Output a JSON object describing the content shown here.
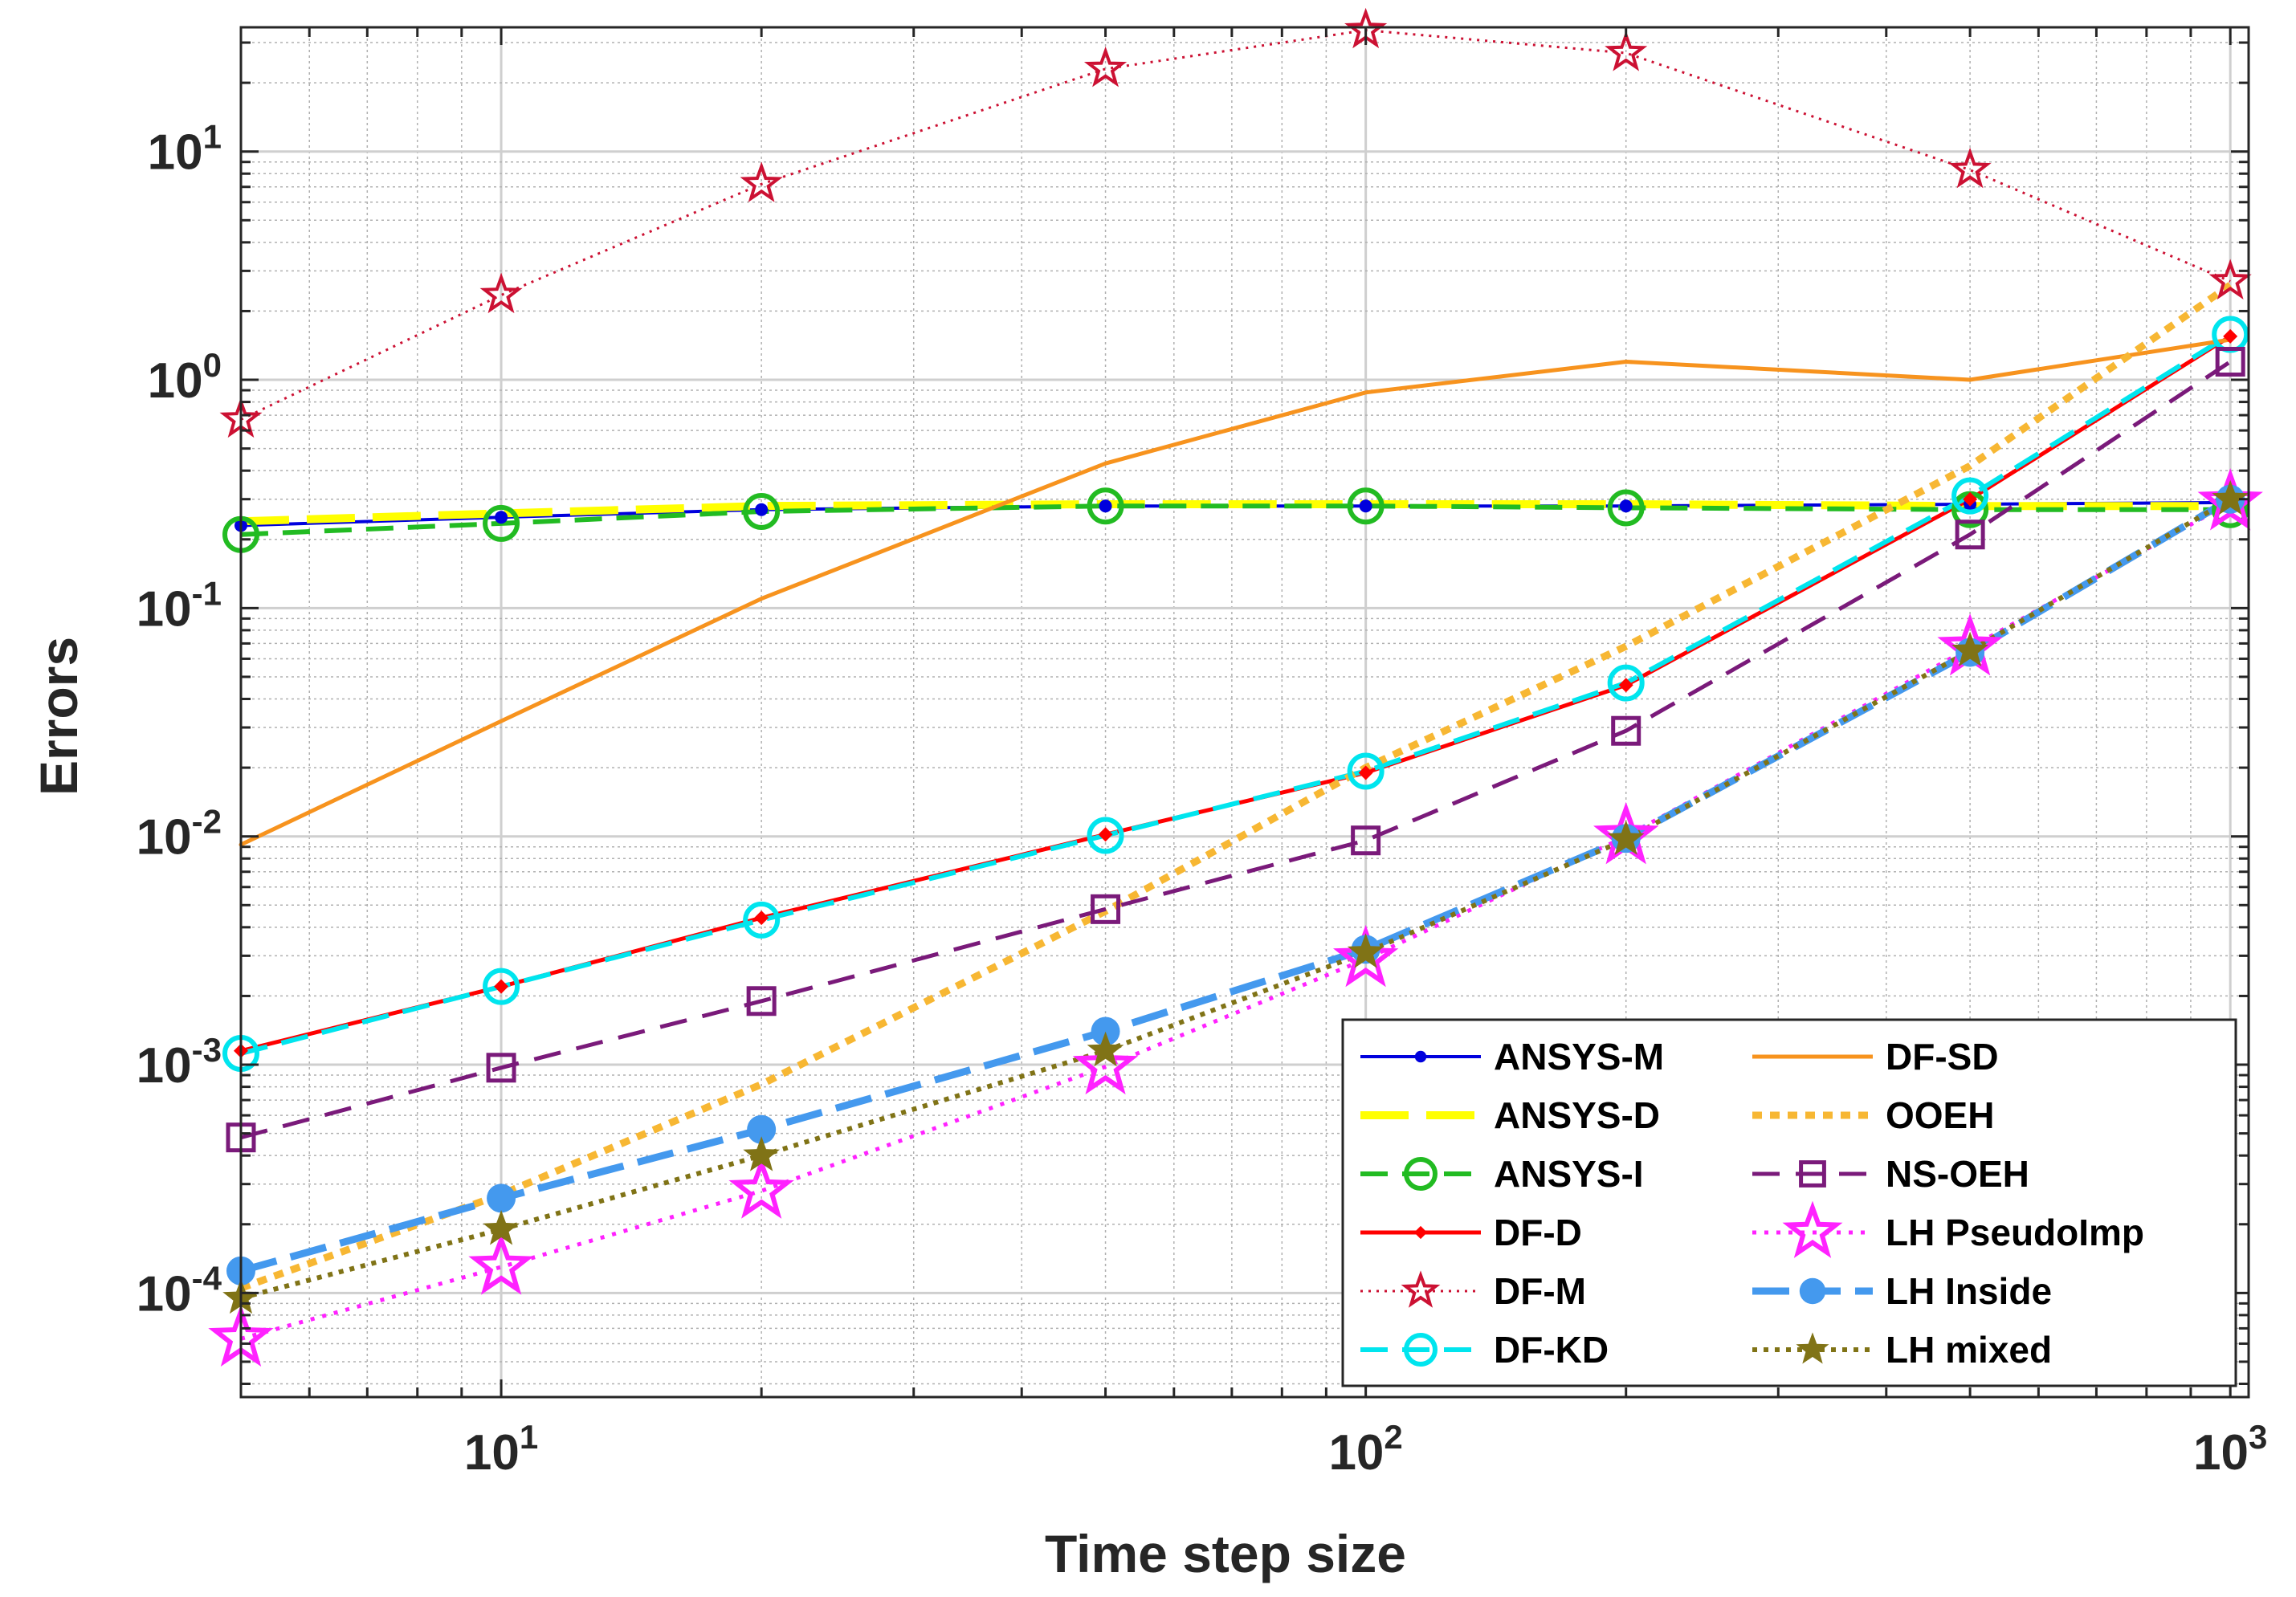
{
  "chart_data": {
    "type": "line",
    "title": "",
    "xlabel": "Time step size",
    "ylabel": "Errors",
    "xscale": "log",
    "yscale": "log",
    "xlim": [
      5,
      1050
    ],
    "ylim": [
      3.5e-05,
      35
    ],
    "grid": true,
    "minor_grid": true,
    "legend_location": "bottom-right",
    "legend_columns": 2,
    "x_ticks": [
      {
        "value": 10,
        "base": "10",
        "exp": "1"
      },
      {
        "value": 100,
        "base": "10",
        "exp": "2"
      },
      {
        "value": 1000,
        "base": "10",
        "exp": "3"
      }
    ],
    "y_ticks": [
      {
        "value": 0.0001,
        "base": "10",
        "exp": "-4"
      },
      {
        "value": 0.001,
        "base": "10",
        "exp": "-3"
      },
      {
        "value": 0.01,
        "base": "10",
        "exp": "-2"
      },
      {
        "value": 0.1,
        "base": "10",
        "exp": "-1"
      },
      {
        "value": 1,
        "base": "10",
        "exp": "0"
      },
      {
        "value": 10,
        "base": "10",
        "exp": "1"
      }
    ],
    "x": [
      5,
      10,
      20,
      50,
      100,
      200,
      500,
      1000
    ],
    "series": [
      {
        "name": "ANSYS-M",
        "color": "#0000dd",
        "dash": "",
        "width": 4,
        "marker": "dot",
        "values": [
          0.23,
          0.25,
          0.27,
          0.28,
          0.28,
          0.28,
          0.285,
          0.29
        ]
      },
      {
        "name": "ANSYS-D",
        "color": "#ffff00",
        "dash": "60,22",
        "width": 10,
        "marker": "none",
        "values": [
          0.24,
          0.26,
          0.28,
          0.285,
          0.285,
          0.285,
          0.28,
          0.28
        ]
      },
      {
        "name": "ANSYS-I",
        "color": "#22bb22",
        "dash": "34,18",
        "width": 6,
        "marker": "circle",
        "values": [
          0.21,
          0.235,
          0.265,
          0.28,
          0.28,
          0.275,
          0.27,
          0.27
        ]
      },
      {
        "name": "DF-D",
        "color": "#ff0000",
        "dash": "",
        "width": 5,
        "marker": "diamond",
        "values": [
          0.00115,
          0.0022,
          0.0044,
          0.0102,
          0.019,
          0.046,
          0.3,
          1.55
        ]
      },
      {
        "name": "DF-M",
        "color": "#cc1133",
        "dash": "3,7",
        "width": 3,
        "marker": "star-outline",
        "values": [
          0.67,
          2.35,
          7.2,
          23,
          34,
          27,
          8.3,
          2.7
        ]
      },
      {
        "name": "DF-KD",
        "color": "#00e5ee",
        "dash": "34,18",
        "width": 6,
        "marker": "circle",
        "values": [
          0.00112,
          0.0022,
          0.0043,
          0.0101,
          0.0193,
          0.047,
          0.31,
          1.58
        ]
      },
      {
        "name": "DF-SD",
        "color": "#f7931e",
        "dash": "",
        "width": 5,
        "marker": "none",
        "values": [
          0.0092,
          0.032,
          0.11,
          0.43,
          0.88,
          1.2,
          1.0,
          1.5
        ]
      },
      {
        "name": "OOEH",
        "color": "#f7b733",
        "dash": "12,10",
        "width": 9,
        "marker": "none",
        "values": [
          0.000105,
          0.00027,
          0.00082,
          0.0047,
          0.02,
          0.068,
          0.42,
          2.6
        ]
      },
      {
        "name": "NS-OEH",
        "color": "#7a1a7a",
        "dash": "34,20",
        "width": 5,
        "marker": "square",
        "values": [
          0.00048,
          0.00097,
          0.0019,
          0.0048,
          0.0096,
          0.029,
          0.21,
          1.2
        ]
      },
      {
        "name": "LH PseudoImp",
        "color": "#ff22ff",
        "dash": "5,10",
        "width": 5,
        "marker": "star-big",
        "values": [
          6.3e-05,
          0.00013,
          0.00028,
          0.00098,
          0.0029,
          0.01,
          0.067,
          0.29
        ]
      },
      {
        "name": "LH Inside",
        "color": "#4499ee",
        "dash": "46,18",
        "width": 9,
        "marker": "dot-big",
        "values": [
          0.000125,
          0.00026,
          0.00052,
          0.0014,
          0.0032,
          0.0098,
          0.064,
          0.3
        ]
      },
      {
        "name": "LH mixed",
        "color": "#807316",
        "dash": "6,8",
        "width": 6,
        "marker": "star-filled",
        "values": [
          9.5e-05,
          0.00019,
          0.0004,
          0.00115,
          0.0031,
          0.0097,
          0.065,
          0.3
        ]
      }
    ]
  }
}
